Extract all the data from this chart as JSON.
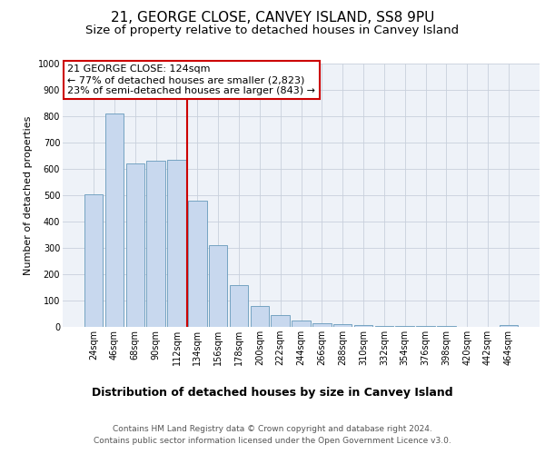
{
  "title1": "21, GEORGE CLOSE, CANVEY ISLAND, SS8 9PU",
  "title2": "Size of property relative to detached houses in Canvey Island",
  "xlabel": "Distribution of detached houses by size in Canvey Island",
  "ylabel": "Number of detached properties",
  "categories": [
    "24sqm",
    "46sqm",
    "68sqm",
    "90sqm",
    "112sqm",
    "134sqm",
    "156sqm",
    "178sqm",
    "200sqm",
    "222sqm",
    "244sqm",
    "266sqm",
    "288sqm",
    "310sqm",
    "332sqm",
    "354sqm",
    "376sqm",
    "398sqm",
    "420sqm",
    "442sqm",
    "464sqm"
  ],
  "values": [
    505,
    810,
    620,
    630,
    635,
    480,
    310,
    160,
    78,
    45,
    25,
    15,
    10,
    6,
    4,
    3,
    2,
    2,
    1,
    1,
    8
  ],
  "bar_color": "#c8d8ee",
  "bar_edge_color": "#6699bb",
  "annotation_line1": "21 GEORGE CLOSE: 124sqm",
  "annotation_line2": "← 77% of detached houses are smaller (2,823)",
  "annotation_line3": "23% of semi-detached houses are larger (843) →",
  "redline_color": "#cc0000",
  "redline_index": 5.0,
  "ylim_min": 0,
  "ylim_max": 1000,
  "yticks": [
    0,
    100,
    200,
    300,
    400,
    500,
    600,
    700,
    800,
    900,
    1000
  ],
  "grid_color": "#c8d0dc",
  "plot_bg_color": "#eef2f8",
  "footer1": "Contains HM Land Registry data © Crown copyright and database right 2024.",
  "footer2": "Contains public sector information licensed under the Open Government Licence v3.0.",
  "title1_fontsize": 11,
  "title2_fontsize": 9.5,
  "xlabel_fontsize": 9,
  "ylabel_fontsize": 8,
  "footer_fontsize": 6.5,
  "tick_fontsize": 7,
  "annot_fontsize": 8
}
